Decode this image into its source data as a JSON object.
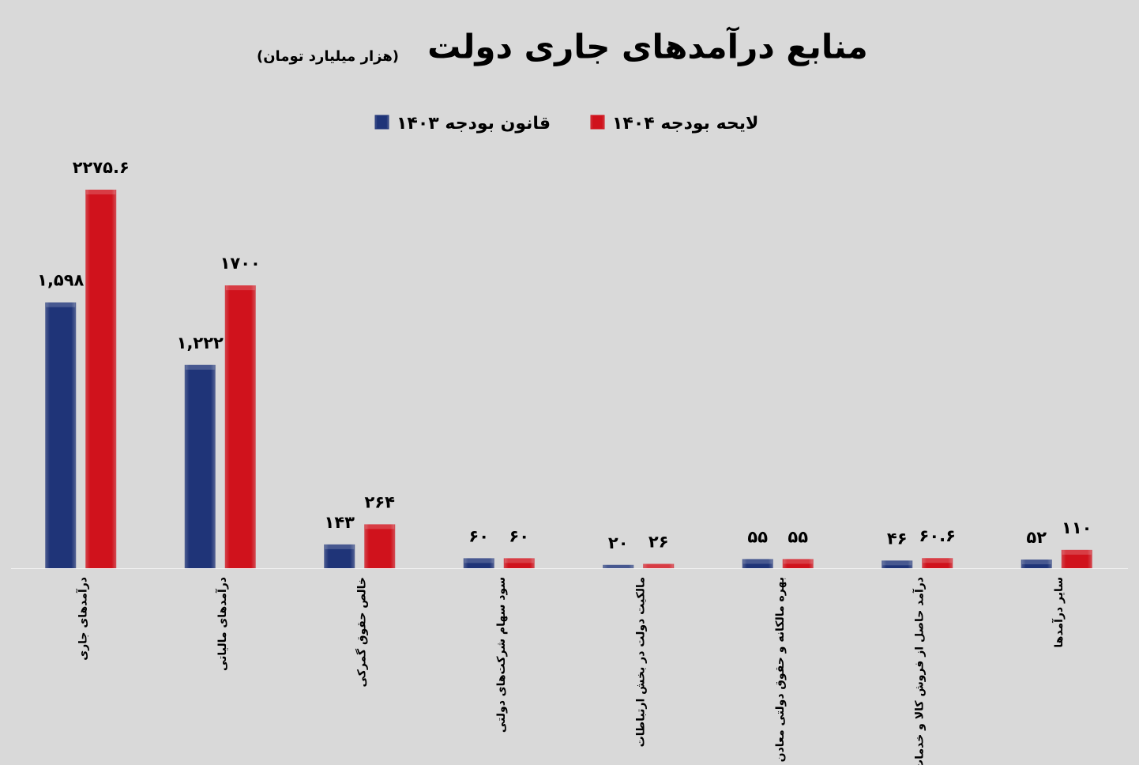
{
  "chart_data": {
    "type": "bar",
    "title": "منابع درآمدهای جاری دولت",
    "subtitle": "(هزار میلیارد تومان)",
    "categories": [
      "درآمدهای جاری",
      "درآمدهای مالیاتی",
      "خالص حقوق گمرکی",
      "سود سهام شرکت‌های دولتی",
      "مالکیت دولت در بخش ارتباطات",
      "بهره مالکانه و حقوق دولتی معادن",
      "درآمد حاصل از فروش کالا و خدمات",
      "سایر درآمدها"
    ],
    "series": [
      {
        "name": "قانون بودجه ۱۴۰۳",
        "color": "#1f3478",
        "values": [
          1598,
          1222,
          143,
          60,
          20,
          55,
          46,
          52
        ],
        "value_labels": [
          "۱,۵۹۸",
          "۱,۲۲۲",
          "۱۴۳",
          "۶۰",
          "۲۰",
          "۵۵",
          "۴۶",
          "۵۲"
        ]
      },
      {
        "name": "لایحه بودجه ۱۴۰۴",
        "color": "#d0121c",
        "values": [
          2275.6,
          1700,
          264,
          60,
          26,
          55,
          60.6,
          110
        ],
        "value_labels": [
          "۲۲۷۵.۶",
          "۱۷۰۰",
          "۲۶۴",
          "۶۰",
          "۲۶",
          "۵۵",
          "۶۰.۶",
          "۱۱۰"
        ]
      }
    ]
  }
}
